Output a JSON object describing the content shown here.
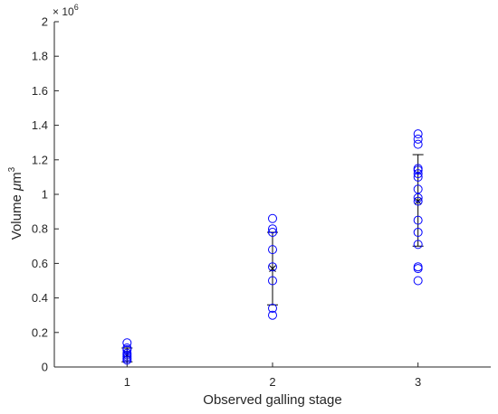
{
  "chart_data": {
    "type": "scatter",
    "title": "",
    "xlabel": "Observed galling stage",
    "ylabel_main": "Volume ",
    "ylabel_mu": "μ",
    "ylabel_m": "m",
    "ylabel_sup": "3",
    "y_multiplier_base": "× 10",
    "y_multiplier_exp": "6",
    "xlim": [
      0.5,
      3.5
    ],
    "ylim": [
      0,
      2
    ],
    "grid": false,
    "xticks": [
      1,
      2,
      3
    ],
    "xtick_labels": [
      "1",
      "2",
      "3"
    ],
    "yticks": [
      0,
      0.2,
      0.4,
      0.6,
      0.8,
      1,
      1.2,
      1.4,
      1.6,
      1.8,
      2
    ],
    "ytick_labels": [
      "0",
      "0.2",
      "0.4",
      "0.6",
      "0.8",
      "1",
      "1.2",
      "1.4",
      "1.6",
      "1.8",
      "2"
    ],
    "marker_color": "#0000ff",
    "errorbar_color": "#000000",
    "points": [
      {
        "x": 1,
        "y": 0.14
      },
      {
        "x": 1,
        "y": 0.11
      },
      {
        "x": 1,
        "y": 0.1
      },
      {
        "x": 1,
        "y": 0.08
      },
      {
        "x": 1,
        "y": 0.07
      },
      {
        "x": 1,
        "y": 0.06
      },
      {
        "x": 1,
        "y": 0.05
      },
      {
        "x": 1,
        "y": 0.04
      },
      {
        "x": 2,
        "y": 0.86
      },
      {
        "x": 2,
        "y": 0.8
      },
      {
        "x": 2,
        "y": 0.78
      },
      {
        "x": 2,
        "y": 0.68
      },
      {
        "x": 2,
        "y": 0.58
      },
      {
        "x": 2,
        "y": 0.5
      },
      {
        "x": 2,
        "y": 0.34
      },
      {
        "x": 2,
        "y": 0.3
      },
      {
        "x": 3,
        "y": 1.35
      },
      {
        "x": 3,
        "y": 1.32
      },
      {
        "x": 3,
        "y": 1.29
      },
      {
        "x": 3,
        "y": 1.15
      },
      {
        "x": 3,
        "y": 1.14
      },
      {
        "x": 3,
        "y": 1.12
      },
      {
        "x": 3,
        "y": 1.1
      },
      {
        "x": 3,
        "y": 1.03
      },
      {
        "x": 3,
        "y": 0.98
      },
      {
        "x": 3,
        "y": 0.96
      },
      {
        "x": 3,
        "y": 0.85
      },
      {
        "x": 3,
        "y": 0.78
      },
      {
        "x": 3,
        "y": 0.71
      },
      {
        "x": 3,
        "y": 0.58
      },
      {
        "x": 3,
        "y": 0.57
      },
      {
        "x": 3,
        "y": 0.5
      }
    ],
    "errorbars": [
      {
        "x": 1,
        "mean": 0.07,
        "low": 0.03,
        "high": 0.11
      },
      {
        "x": 2,
        "mean": 0.57,
        "low": 0.36,
        "high": 0.78
      },
      {
        "x": 3,
        "mean": 0.96,
        "low": 0.7,
        "high": 1.23
      }
    ]
  }
}
